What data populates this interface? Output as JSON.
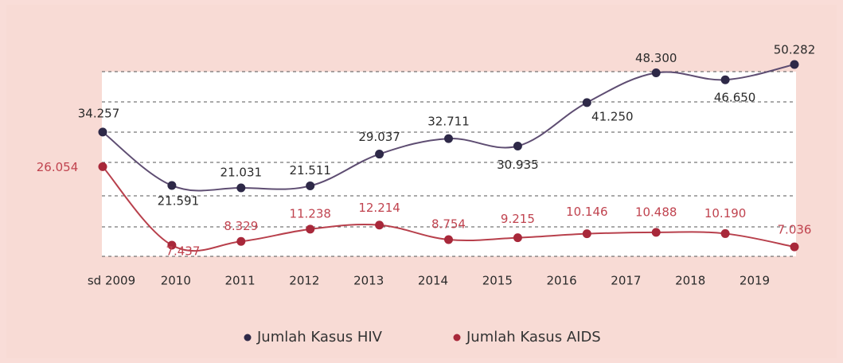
{
  "chart_data": {
    "type": "line",
    "categories": [
      "sd 2009",
      "2010",
      "2011",
      "2012",
      "2013",
      "2014",
      "2015",
      "2016",
      "2017",
      "2018",
      "2019"
    ],
    "series": [
      {
        "name": "Jumlah Kasus HIV",
        "color": "#2e2948",
        "line_color": "#5e4d72",
        "values": [
          34257,
          21591,
          21031,
          21511,
          29037,
          32711,
          30935,
          41250,
          48300,
          46650,
          50282
        ],
        "value_labels": [
          "34.257",
          "21.591",
          "21.031",
          "21.511",
          "29.037",
          "32.711",
          "30.935",
          "41.250",
          "48.300",
          "46.650",
          "50.282"
        ]
      },
      {
        "name": "Jumlah Kasus AIDS",
        "color": "#a8283a",
        "line_color": "#b8404c",
        "values": [
          26054,
          7437,
          8329,
          11238,
          12214,
          8754,
          9215,
          10146,
          10488,
          10190,
          7036
        ],
        "value_labels": [
          "26.054",
          "7.437",
          "8.329",
          "11.238",
          "12.214",
          "8.754",
          "9.215",
          "10.146",
          "10.488",
          "10.190",
          "7.036"
        ]
      }
    ],
    "ylim": [
      4800,
      52000
    ]
  }
}
